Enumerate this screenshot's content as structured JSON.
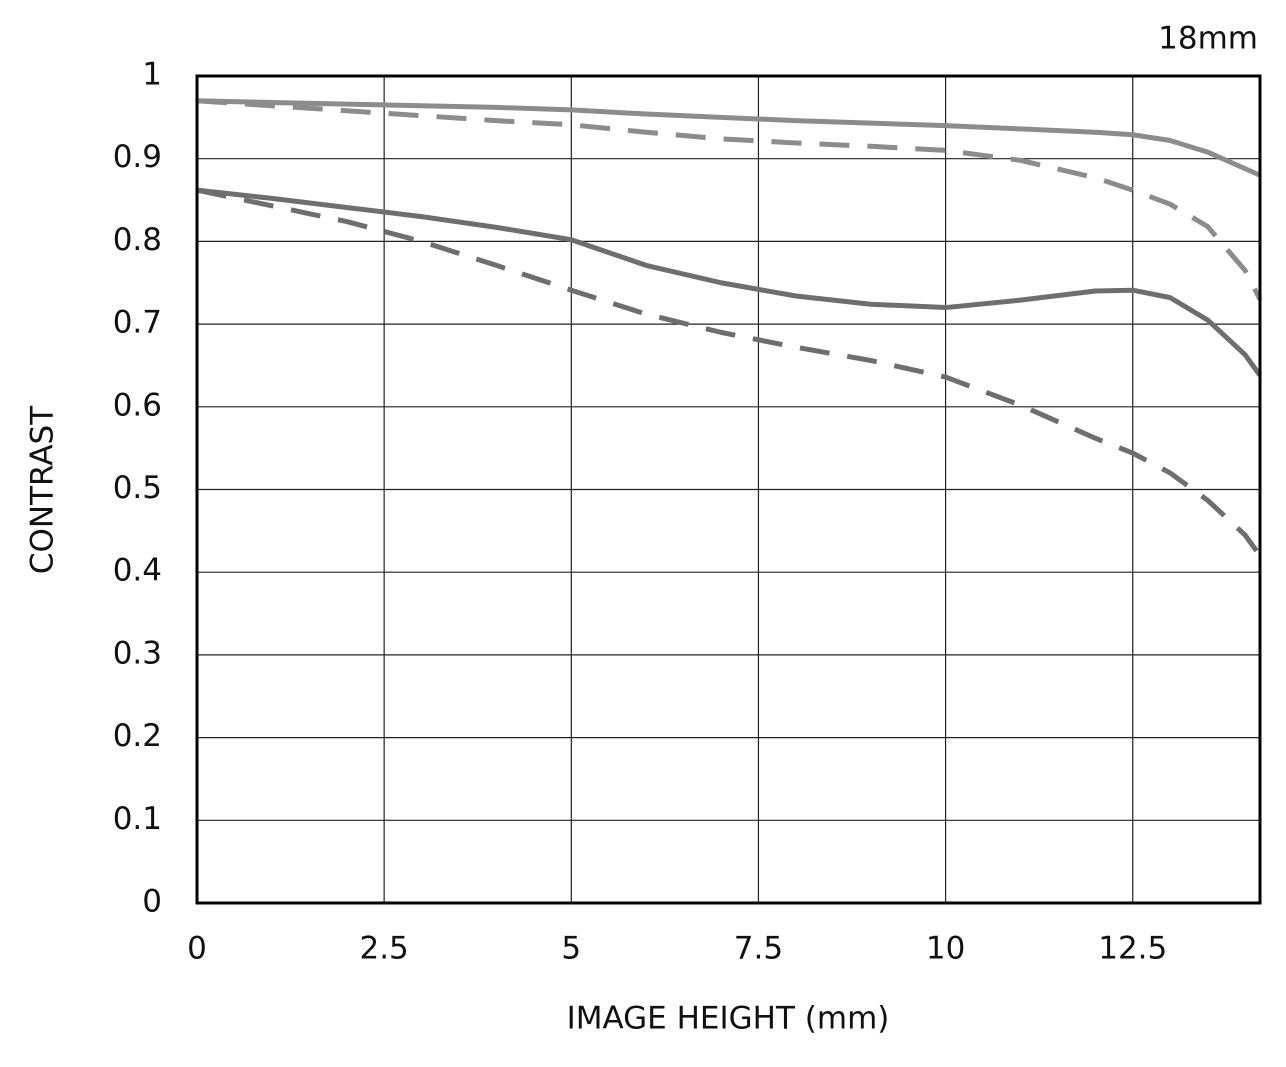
{
  "chart_data": {
    "type": "line",
    "title": "18mm",
    "x_label": "IMAGE HEIGHT (mm)",
    "y_label": "CONTRAST",
    "x": [
      0,
      1,
      2,
      3,
      4,
      5,
      6,
      7,
      8,
      9,
      10,
      11,
      12,
      12.5,
      13,
      13.5,
      14,
      14.2
    ],
    "series": [
      {
        "color": "#8c8c8c",
        "dashed": false,
        "values": [
          0.97,
          0.968,
          0.966,
          0.964,
          0.962,
          0.959,
          0.954,
          0.95,
          0.946,
          0.943,
          0.94,
          0.936,
          0.932,
          0.929,
          0.922,
          0.908,
          0.888,
          0.88
        ]
      },
      {
        "color": "#8c8c8c",
        "dashed": true,
        "values": [
          0.97,
          0.964,
          0.958,
          0.952,
          0.946,
          0.941,
          0.932,
          0.924,
          0.919,
          0.915,
          0.91,
          0.898,
          0.877,
          0.862,
          0.845,
          0.818,
          0.765,
          0.73
        ]
      },
      {
        "color": "#6e6e6e",
        "dashed": false,
        "values": [
          0.862,
          0.852,
          0.841,
          0.83,
          0.817,
          0.802,
          0.771,
          0.75,
          0.734,
          0.724,
          0.72,
          0.729,
          0.74,
          0.741,
          0.732,
          0.705,
          0.663,
          0.638
        ]
      },
      {
        "color": "#6e6e6e",
        "dashed": true,
        "values": [
          0.862,
          0.843,
          0.824,
          0.8,
          0.771,
          0.741,
          0.712,
          0.69,
          0.672,
          0.656,
          0.636,
          0.602,
          0.562,
          0.544,
          0.52,
          0.487,
          0.445,
          0.42
        ]
      }
    ],
    "xlim": [
      0,
      14.2
    ],
    "ylim": [
      0,
      1
    ],
    "xticks": [
      0,
      2.5,
      5,
      7.5,
      10,
      12.5
    ],
    "yticks": [
      0,
      0.1,
      0.2,
      0.3,
      0.4,
      0.5,
      0.6,
      0.7,
      0.8,
      0.9,
      1
    ],
    "grid": true
  }
}
